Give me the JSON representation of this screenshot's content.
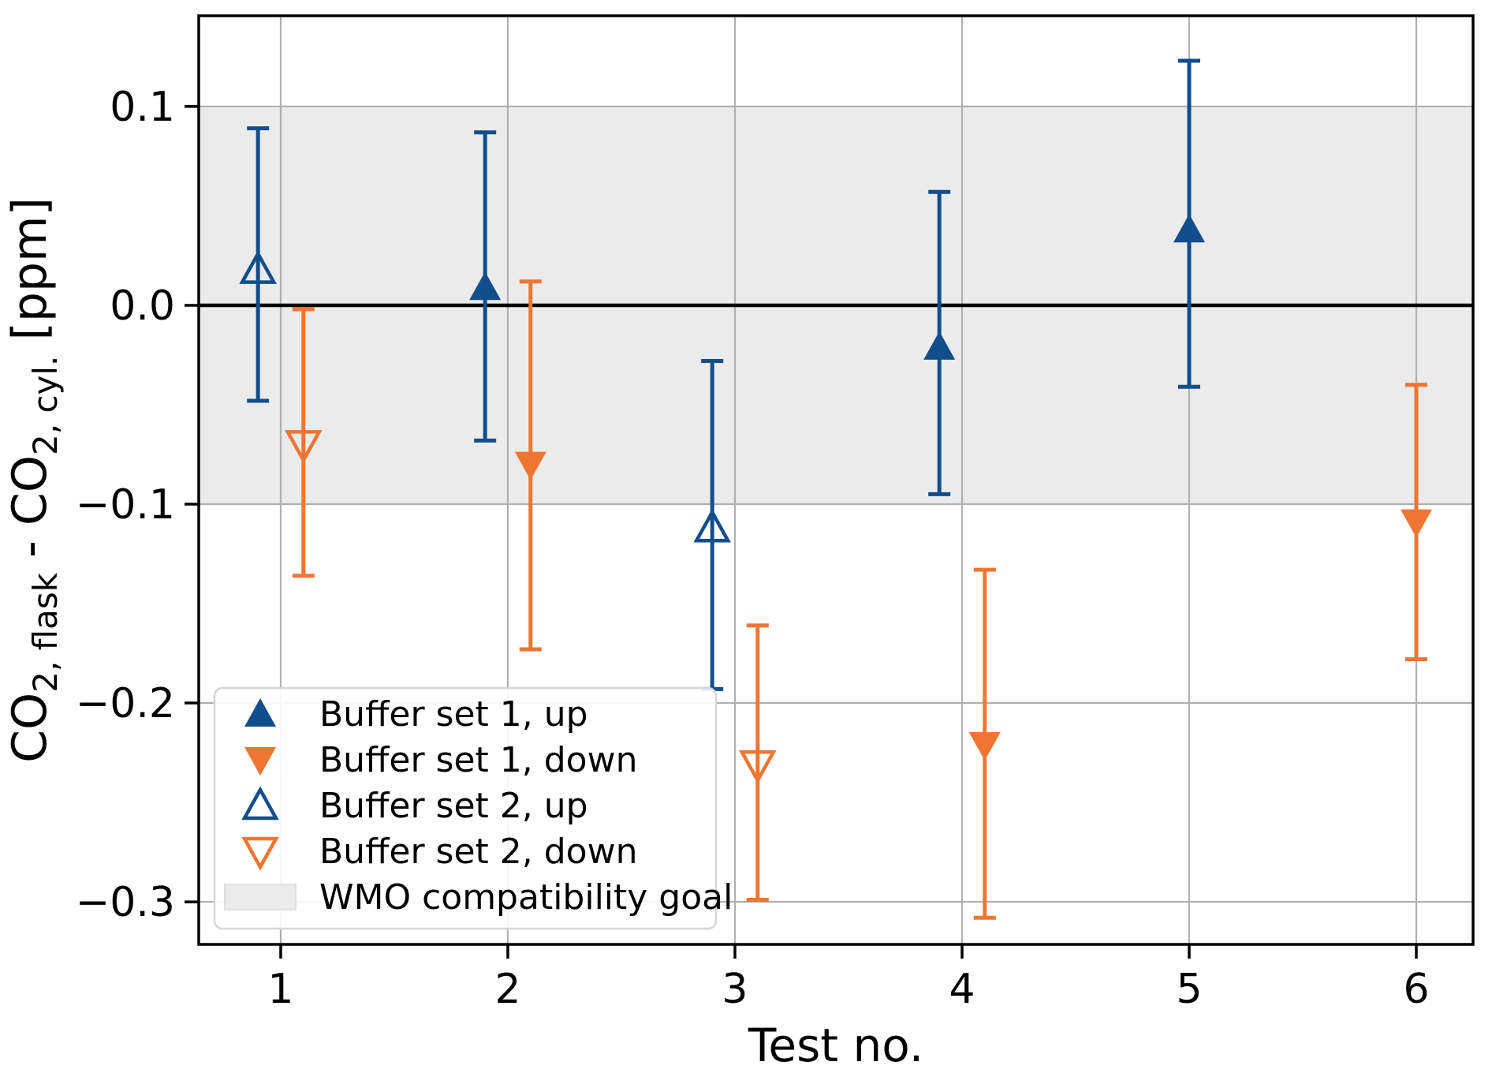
{
  "chart_data": {
    "type": "scatter",
    "title": "",
    "xlabel": "Test no.",
    "ylabel_parts": [
      {
        "text": "CO",
        "sub": false
      },
      {
        "text": "2, flask",
        "sub": true
      },
      {
        "text": " - CO",
        "sub": false
      },
      {
        "text": "2, cyl.",
        "sub": true
      },
      {
        "text": " [ppm]",
        "sub": false
      }
    ],
    "xlim": [
      0.639,
      6.25
    ],
    "ylim": [
      -0.3214,
      0.1456
    ],
    "xticks": [
      1,
      2,
      3,
      4,
      5,
      6
    ],
    "xtick_labels": [
      "1",
      "2",
      "3",
      "4",
      "5",
      "6"
    ],
    "yticks": [
      0.1,
      0.0,
      -0.1,
      -0.2,
      -0.3
    ],
    "ytick_labels": [
      "0.1",
      "0.0",
      "−0.1",
      "−0.2",
      "−0.3"
    ],
    "grid": true,
    "zero_line": 0.0,
    "wmo_band": {
      "ymin": -0.1,
      "ymax": 0.1,
      "color": "#ebebeb",
      "label": "WMO compatibility goal"
    },
    "colors": {
      "blue": "#114e8b",
      "orange": "#ee7632",
      "grid": "#b0b0b0",
      "band": "#ebebeb",
      "legend_border": "#d6d6d6"
    },
    "series": [
      {
        "name": "Buffer set 1, up",
        "marker": "triangle-up",
        "fill": "solid",
        "color": "#114e8b",
        "points": [
          {
            "x": 1.9,
            "y": 0.009,
            "ylo": -0.068,
            "yhi": 0.087
          },
          {
            "x": 3.9,
            "y": -0.021,
            "ylo": -0.095,
            "yhi": 0.057
          },
          {
            "x": 5.0,
            "y": 0.038,
            "ylo": -0.041,
            "yhi": 0.123
          }
        ]
      },
      {
        "name": "Buffer set 1, down",
        "marker": "triangle-down",
        "fill": "solid",
        "color": "#ee7632",
        "points": [
          {
            "x": 2.1,
            "y": -0.08,
            "ylo": -0.173,
            "yhi": 0.012
          },
          {
            "x": 4.1,
            "y": -0.221,
            "ylo": -0.308,
            "yhi": -0.133
          },
          {
            "x": 6.0,
            "y": -0.109,
            "ylo": -0.178,
            "yhi": -0.04
          }
        ]
      },
      {
        "name": "Buffer set 2, up",
        "marker": "triangle-up",
        "fill": "open",
        "color": "#114e8b",
        "points": [
          {
            "x": 0.9,
            "y": 0.018,
            "ylo": -0.048,
            "yhi": 0.089
          },
          {
            "x": 2.9,
            "y": -0.112,
            "ylo": -0.193,
            "yhi": -0.028
          }
        ]
      },
      {
        "name": "Buffer set 2, down",
        "marker": "triangle-down",
        "fill": "open",
        "color": "#ee7632",
        "points": [
          {
            "x": 1.1,
            "y": -0.07,
            "ylo": -0.136,
            "yhi": -0.002
          },
          {
            "x": 3.1,
            "y": -0.231,
            "ylo": -0.299,
            "yhi": -0.161
          }
        ]
      }
    ],
    "legend": {
      "position": "lower-left",
      "entries": [
        {
          "label": "Buffer set 1, up",
          "swatch": "triangle-up",
          "fill": "solid",
          "color": "#114e8b"
        },
        {
          "label": "Buffer set 1, down",
          "swatch": "triangle-down",
          "fill": "solid",
          "color": "#ee7632"
        },
        {
          "label": "Buffer set 2, up",
          "swatch": "triangle-up",
          "fill": "open",
          "color": "#114e8b"
        },
        {
          "label": "Buffer set 2, down",
          "swatch": "triangle-down",
          "fill": "open",
          "color": "#ee7632"
        },
        {
          "label": "WMO compatibility goal",
          "swatch": "band",
          "fill": "solid",
          "color": "#ebebeb"
        }
      ]
    }
  }
}
